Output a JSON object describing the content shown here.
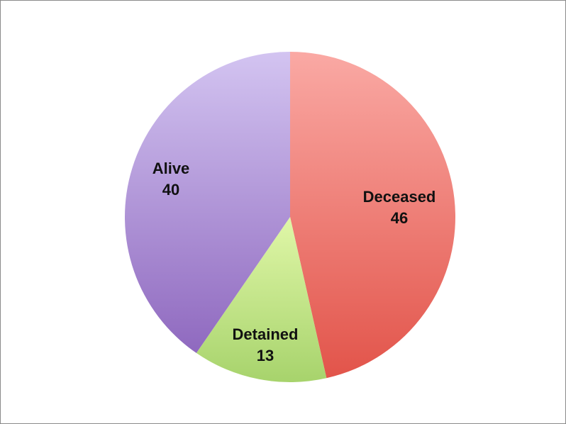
{
  "chart_data": {
    "type": "pie",
    "title": "",
    "slices": [
      {
        "label": "Deceased",
        "value": 46,
        "value_text": "46",
        "color": "#e8604f"
      },
      {
        "label": "Detained",
        "value": 13,
        "value_text": "13",
        "color": "#9ccc6a"
      },
      {
        "label": "Alive",
        "value": 40,
        "value_text": "40",
        "color": "#a98ad0"
      }
    ],
    "start_angle": "12 o'clock",
    "direction": "clockwise",
    "legend": "none",
    "labels": "inside slices (category name and value)"
  }
}
